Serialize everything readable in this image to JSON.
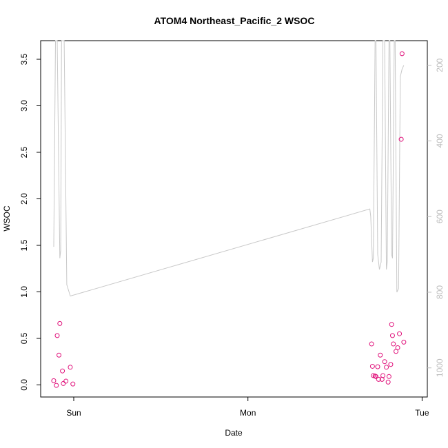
{
  "chart_data": {
    "type": "scatter",
    "title": "ATOM4 Northeast_Pacific_2 WSOC",
    "xlabel": "Date",
    "ylabel": "WSOC",
    "x_tick_labels": [
      "Sun",
      "Mon",
      "Tue"
    ],
    "x_ticks_day_index": [
      0,
      1,
      2
    ],
    "xlim_day_index": [
      -0.19,
      2.03
    ],
    "ylim": [
      -0.13,
      3.7
    ],
    "y_ticks": [
      0.0,
      0.5,
      1.0,
      1.5,
      2.0,
      2.5,
      3.0,
      3.5
    ],
    "y_tick_labels": [
      "0.0",
      "0.5",
      "1.0",
      "1.5",
      "2.0",
      "2.5",
      "3.0",
      "3.5"
    ],
    "right_axis": {
      "reversed": true,
      "lim": [
        1077,
        135
      ],
      "ticks": [
        200,
        400,
        600,
        800,
        1000
      ],
      "tick_labels": [
        "200",
        "400",
        "600",
        "800",
        "1000"
      ],
      "color": "#bdbdbd"
    },
    "series": [
      {
        "kind": "points",
        "color": "#e0107a",
        "marker": "open-circle",
        "axis": "left",
        "points": [
          [
            -0.115,
            0.045
          ],
          [
            -0.1,
            -0.005
          ],
          [
            -0.095,
            0.53
          ],
          [
            -0.085,
            0.32
          ],
          [
            -0.08,
            0.66
          ],
          [
            -0.065,
            0.15
          ],
          [
            -0.06,
            0.015
          ],
          [
            -0.045,
            0.04
          ],
          [
            -0.02,
            0.19
          ],
          [
            -0.005,
            0.01
          ],
          [
            1.71,
            0.44
          ],
          [
            1.715,
            0.2
          ],
          [
            1.72,
            0.1
          ],
          [
            1.73,
            0.095
          ],
          [
            1.735,
            0.09
          ],
          [
            1.745,
            0.195
          ],
          [
            1.75,
            0.06
          ],
          [
            1.76,
            0.32
          ],
          [
            1.77,
            0.06
          ],
          [
            1.775,
            0.1
          ],
          [
            1.785,
            0.25
          ],
          [
            1.795,
            0.19
          ],
          [
            1.805,
            0.03
          ],
          [
            1.81,
            0.09
          ],
          [
            1.82,
            0.22
          ],
          [
            1.825,
            0.65
          ],
          [
            1.83,
            0.53
          ],
          [
            1.835,
            0.44
          ],
          [
            1.85,
            0.36
          ],
          [
            1.86,
            0.4
          ],
          [
            1.87,
            0.55
          ],
          [
            1.88,
            2.64
          ],
          [
            1.885,
            3.56
          ],
          [
            1.895,
            0.46
          ]
        ]
      },
      {
        "kind": "line",
        "color": "#c8c8c8",
        "axis": "right",
        "points": [
          [
            -0.115,
            680
          ],
          [
            -0.105,
            135
          ],
          [
            -0.095,
            135
          ],
          [
            -0.08,
            710
          ],
          [
            -0.075,
            690
          ],
          [
            -0.07,
            135
          ],
          [
            -0.055,
            135
          ],
          [
            -0.04,
            780
          ],
          [
            -0.02,
            810
          ],
          [
            1.7,
            580
          ],
          [
            1.705,
            600
          ],
          [
            1.715,
            720
          ],
          [
            1.72,
            710
          ],
          [
            1.73,
            135
          ],
          [
            1.735,
            135
          ],
          [
            1.745,
            700
          ],
          [
            1.755,
            740
          ],
          [
            1.765,
            720
          ],
          [
            1.775,
            135
          ],
          [
            1.785,
            135
          ],
          [
            1.795,
            740
          ],
          [
            1.8,
            720
          ],
          [
            1.81,
            135
          ],
          [
            1.815,
            135
          ],
          [
            1.825,
            700
          ],
          [
            1.83,
            710
          ],
          [
            1.84,
            135
          ],
          [
            1.845,
            135
          ],
          [
            1.855,
            800
          ],
          [
            1.865,
            790
          ],
          [
            1.875,
            230
          ],
          [
            1.885,
            210
          ],
          [
            1.895,
            200
          ]
        ]
      }
    ]
  }
}
